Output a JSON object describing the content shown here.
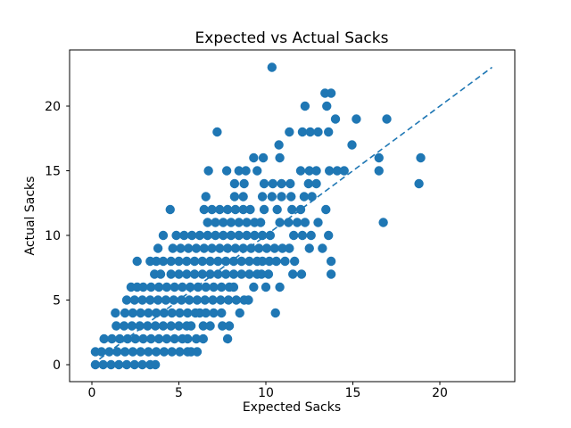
{
  "chart_data": {
    "type": "scatter",
    "title": "Expected vs Actual Sacks",
    "xlabel": "Expected Sacks",
    "ylabel": "Actual Sacks",
    "xticks": [
      0,
      5,
      10,
      15,
      20
    ],
    "yticks": [
      0,
      5,
      10,
      15,
      20
    ],
    "xlim": [
      -1.3,
      24.2
    ],
    "ylim": [
      -1.3,
      24.3
    ],
    "grid": false,
    "legend": "none",
    "marker_color": "#1f77b4",
    "trendline": {
      "style": "dashed",
      "color": "#1f77b4",
      "from": [
        0,
        0
      ],
      "to": [
        23,
        23
      ]
    },
    "points": [
      [
        0.2,
        0
      ],
      [
        0.65,
        0
      ],
      [
        1.1,
        0
      ],
      [
        1.55,
        0
      ],
      [
        2.0,
        0
      ],
      [
        2.45,
        0
      ],
      [
        2.9,
        0
      ],
      [
        3.35,
        0
      ],
      [
        3.65,
        0
      ],
      [
        0.2,
        1
      ],
      [
        0.55,
        1
      ],
      [
        1.0,
        1
      ],
      [
        1.45,
        1
      ],
      [
        1.9,
        1
      ],
      [
        2.35,
        1
      ],
      [
        2.8,
        1
      ],
      [
        3.25,
        1
      ],
      [
        3.7,
        1
      ],
      [
        4.15,
        1
      ],
      [
        4.6,
        1
      ],
      [
        5.05,
        1
      ],
      [
        5.5,
        1
      ],
      [
        5.7,
        1
      ],
      [
        6.05,
        1
      ],
      [
        0.7,
        2
      ],
      [
        1.15,
        2
      ],
      [
        1.6,
        2
      ],
      [
        2.05,
        2
      ],
      [
        2.5,
        2
      ],
      [
        2.95,
        2
      ],
      [
        3.4,
        2
      ],
      [
        3.85,
        2
      ],
      [
        4.3,
        2
      ],
      [
        4.75,
        2
      ],
      [
        5.2,
        2
      ],
      [
        5.5,
        2
      ],
      [
        6.0,
        2
      ],
      [
        6.4,
        2
      ],
      [
        7.8,
        2
      ],
      [
        1.4,
        3
      ],
      [
        1.85,
        3
      ],
      [
        2.3,
        3
      ],
      [
        2.75,
        3
      ],
      [
        3.2,
        3
      ],
      [
        3.65,
        3
      ],
      [
        4.1,
        3
      ],
      [
        4.55,
        3
      ],
      [
        5.0,
        3
      ],
      [
        5.45,
        3
      ],
      [
        5.7,
        3
      ],
      [
        6.4,
        3
      ],
      [
        6.8,
        3
      ],
      [
        7.5,
        3
      ],
      [
        7.9,
        3
      ],
      [
        1.35,
        4
      ],
      [
        1.9,
        4
      ],
      [
        2.35,
        4
      ],
      [
        2.8,
        4
      ],
      [
        3.25,
        4
      ],
      [
        3.7,
        4
      ],
      [
        4.15,
        4
      ],
      [
        4.6,
        4
      ],
      [
        5.05,
        4
      ],
      [
        5.5,
        4
      ],
      [
        5.95,
        4
      ],
      [
        6.2,
        4
      ],
      [
        6.55,
        4
      ],
      [
        7.0,
        4
      ],
      [
        7.45,
        4
      ],
      [
        8.5,
        4
      ],
      [
        10.55,
        4
      ],
      [
        2.0,
        5
      ],
      [
        2.45,
        5
      ],
      [
        2.9,
        5
      ],
      [
        3.35,
        5
      ],
      [
        3.8,
        5
      ],
      [
        4.25,
        5
      ],
      [
        4.7,
        5
      ],
      [
        5.15,
        5
      ],
      [
        5.6,
        5
      ],
      [
        6.05,
        5
      ],
      [
        6.5,
        5
      ],
      [
        6.95,
        5
      ],
      [
        7.4,
        5
      ],
      [
        7.85,
        5
      ],
      [
        8.3,
        5
      ],
      [
        8.75,
        5
      ],
      [
        9.0,
        5
      ],
      [
        2.25,
        6
      ],
      [
        2.6,
        6
      ],
      [
        2.95,
        6
      ],
      [
        3.4,
        6
      ],
      [
        3.85,
        6
      ],
      [
        4.3,
        6
      ],
      [
        4.75,
        6
      ],
      [
        5.2,
        6
      ],
      [
        5.65,
        6
      ],
      [
        6.1,
        6
      ],
      [
        6.55,
        6
      ],
      [
        7.0,
        6
      ],
      [
        7.45,
        6
      ],
      [
        7.9,
        6
      ],
      [
        8.15,
        6
      ],
      [
        9.3,
        6
      ],
      [
        10.0,
        6
      ],
      [
        10.8,
        6
      ],
      [
        3.6,
        7
      ],
      [
        3.95,
        7
      ],
      [
        4.55,
        7
      ],
      [
        5.0,
        7
      ],
      [
        5.45,
        7
      ],
      [
        5.9,
        7
      ],
      [
        6.35,
        7
      ],
      [
        6.8,
        7
      ],
      [
        7.25,
        7
      ],
      [
        7.7,
        7
      ],
      [
        8.15,
        7
      ],
      [
        8.6,
        7
      ],
      [
        9.05,
        7
      ],
      [
        9.5,
        7
      ],
      [
        9.75,
        7
      ],
      [
        10.15,
        7
      ],
      [
        11.55,
        7
      ],
      [
        12.05,
        7
      ],
      [
        13.75,
        7
      ],
      [
        2.6,
        8
      ],
      [
        3.35,
        8
      ],
      [
        3.7,
        8
      ],
      [
        4.1,
        8
      ],
      [
        4.55,
        8
      ],
      [
        5.0,
        8
      ],
      [
        5.45,
        8
      ],
      [
        5.9,
        8
      ],
      [
        6.35,
        8
      ],
      [
        6.8,
        8
      ],
      [
        7.25,
        8
      ],
      [
        7.7,
        8
      ],
      [
        8.15,
        8
      ],
      [
        8.6,
        8
      ],
      [
        9.05,
        8
      ],
      [
        9.5,
        8
      ],
      [
        9.8,
        8
      ],
      [
        10.2,
        8
      ],
      [
        10.6,
        8
      ],
      [
        11.1,
        8
      ],
      [
        11.65,
        8
      ],
      [
        13.75,
        8
      ],
      [
        3.8,
        9
      ],
      [
        4.65,
        9
      ],
      [
        5.1,
        9
      ],
      [
        5.55,
        9
      ],
      [
        6.0,
        9
      ],
      [
        6.45,
        9
      ],
      [
        6.9,
        9
      ],
      [
        7.35,
        9
      ],
      [
        7.8,
        9
      ],
      [
        8.25,
        9
      ],
      [
        8.7,
        9
      ],
      [
        9.15,
        9
      ],
      [
        9.6,
        9
      ],
      [
        10.05,
        9
      ],
      [
        10.5,
        9
      ],
      [
        10.95,
        9
      ],
      [
        11.35,
        9
      ],
      [
        12.5,
        9
      ],
      [
        13.25,
        9
      ],
      [
        4.1,
        10
      ],
      [
        4.85,
        10
      ],
      [
        5.3,
        10
      ],
      [
        5.75,
        10
      ],
      [
        6.2,
        10
      ],
      [
        6.65,
        10
      ],
      [
        7.1,
        10
      ],
      [
        7.55,
        10
      ],
      [
        8.0,
        10
      ],
      [
        8.45,
        10
      ],
      [
        8.9,
        10
      ],
      [
        9.35,
        10
      ],
      [
        9.8,
        10
      ],
      [
        10.25,
        10
      ],
      [
        11.6,
        10
      ],
      [
        12.1,
        10
      ],
      [
        12.6,
        10
      ],
      [
        13.6,
        10
      ],
      [
        6.65,
        11
      ],
      [
        7.1,
        11
      ],
      [
        7.55,
        11
      ],
      [
        8.0,
        11
      ],
      [
        8.45,
        11
      ],
      [
        8.9,
        11
      ],
      [
        9.35,
        11
      ],
      [
        9.7,
        11
      ],
      [
        10.8,
        11
      ],
      [
        11.3,
        11
      ],
      [
        11.8,
        11
      ],
      [
        12.25,
        11
      ],
      [
        13.0,
        11
      ],
      [
        16.75,
        11
      ],
      [
        4.5,
        12
      ],
      [
        6.45,
        12
      ],
      [
        6.9,
        12
      ],
      [
        7.35,
        12
      ],
      [
        7.8,
        12
      ],
      [
        8.25,
        12
      ],
      [
        8.7,
        12
      ],
      [
        9.1,
        12
      ],
      [
        9.9,
        12
      ],
      [
        10.65,
        12
      ],
      [
        11.5,
        12
      ],
      [
        12.0,
        12
      ],
      [
        13.45,
        12
      ],
      [
        6.55,
        13
      ],
      [
        8.2,
        13
      ],
      [
        8.7,
        13
      ],
      [
        9.8,
        13
      ],
      [
        10.35,
        13
      ],
      [
        10.9,
        13
      ],
      [
        11.45,
        13
      ],
      [
        12.2,
        13
      ],
      [
        12.65,
        13
      ],
      [
        8.2,
        14
      ],
      [
        8.75,
        14
      ],
      [
        9.9,
        14
      ],
      [
        10.4,
        14
      ],
      [
        10.9,
        14
      ],
      [
        11.4,
        14
      ],
      [
        12.45,
        14
      ],
      [
        12.9,
        14
      ],
      [
        18.8,
        14
      ],
      [
        6.7,
        15
      ],
      [
        7.75,
        15
      ],
      [
        8.45,
        15
      ],
      [
        8.85,
        15
      ],
      [
        9.5,
        15
      ],
      [
        12.0,
        15
      ],
      [
        12.5,
        15
      ],
      [
        12.9,
        15
      ],
      [
        13.65,
        15
      ],
      [
        14.1,
        15
      ],
      [
        14.5,
        15
      ],
      [
        16.5,
        15
      ],
      [
        9.3,
        16
      ],
      [
        9.85,
        16
      ],
      [
        10.8,
        16
      ],
      [
        16.5,
        16
      ],
      [
        18.9,
        16
      ],
      [
        10.75,
        17
      ],
      [
        14.95,
        17
      ],
      [
        7.2,
        18
      ],
      [
        11.35,
        18
      ],
      [
        12.1,
        18
      ],
      [
        12.55,
        18
      ],
      [
        13.0,
        18
      ],
      [
        13.6,
        18
      ],
      [
        14.0,
        19
      ],
      [
        15.2,
        19
      ],
      [
        16.95,
        19
      ],
      [
        12.25,
        20
      ],
      [
        13.5,
        20
      ],
      [
        13.4,
        21
      ],
      [
        13.75,
        21
      ],
      [
        10.35,
        23
      ]
    ]
  }
}
